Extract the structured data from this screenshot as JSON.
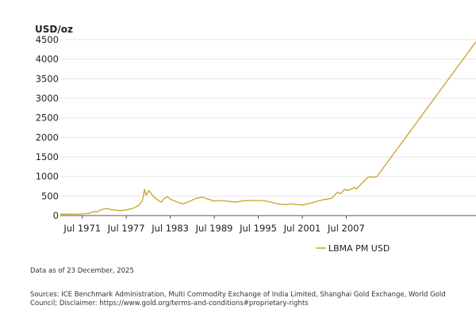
{
  "chart_data": {
    "type": "line",
    "ylabel": "USD/oz",
    "ylim": [
      0,
      4500
    ],
    "yticks": [
      0,
      500,
      1000,
      1500,
      2000,
      2500,
      3000,
      3500,
      4000,
      4500
    ],
    "xlim": [
      1968.5,
      2025.2
    ],
    "xticks": [
      {
        "label": "Jul 1971",
        "value": 1971.5
      },
      {
        "label": "Jul 1977",
        "value": 1977.5
      },
      {
        "label": "Jul 1983",
        "value": 1983.5
      },
      {
        "label": "Jul 1989",
        "value": 1989.5
      },
      {
        "label": "Jul 1995",
        "value": 1995.5
      },
      {
        "label": "Jul 2001",
        "value": 2001.5
      },
      {
        "label": "Jul 2007",
        "value": 2007.5
      }
    ],
    "grid": true,
    "legend_position": "bottom-right",
    "series": [
      {
        "name": "LBMA PM USD",
        "color": "#c9a227",
        "x": [
          1968.5,
          1970,
          1971.5,
          1972.5,
          1973.2,
          1973.5,
          1974.2,
          1974.9,
          1975.5,
          1976.7,
          1977.5,
          1978.5,
          1979.2,
          1979.7,
          1980.0,
          1980.2,
          1980.6,
          1980.9,
          1981.3,
          1981.8,
          1982.3,
          1982.6,
          1983.1,
          1983.5,
          1984.5,
          1985.2,
          1986.0,
          1987.0,
          1987.9,
          1988.5,
          1989.5,
          1990.5,
          1991.5,
          1992.5,
          1993.5,
          1994.5,
          1995.5,
          1996.5,
          1997.5,
          1998.5,
          1999.5,
          1999.8,
          2000.5,
          2001.5,
          2002.5,
          2003.5,
          2004.5,
          2005.5,
          2006.3,
          2006.7,
          2007.3,
          2007.7,
          2008.2,
          2008.6,
          2008.9,
          2009.3,
          2009.8,
          2010.3,
          2010.8,
          2011.2,
          2011.7,
          2025.2
        ],
        "values": [
          35,
          36,
          40,
          60,
          110,
          90,
          160,
          180,
          150,
          125,
          145,
          190,
          260,
          380,
          670,
          520,
          640,
          560,
          470,
          400,
          340,
          430,
          480,
          420,
          340,
          300,
          350,
          440,
          470,
          430,
          370,
          385,
          360,
          345,
          380,
          385,
          385,
          375,
          330,
          290,
          280,
          300,
          285,
          270,
          310,
          365,
          410,
          440,
          600,
          560,
          670,
          640,
          680,
          720,
          680,
          760,
          860,
          950,
          1000,
          980,
          1000,
          4450
        ]
      }
    ]
  },
  "legend": {
    "label": "LBMA PM USD"
  },
  "footer": {
    "data_note": "Data as of 23 December, 2025",
    "sources": "Sources: ICE Benchmark Administration, Multi Commodity Exchange of India Limited, Shanghai Gold Exchange, World Gold Council; Disclaimer: https://www.gold.org/terms-and-conditions#proprietary-rights"
  }
}
